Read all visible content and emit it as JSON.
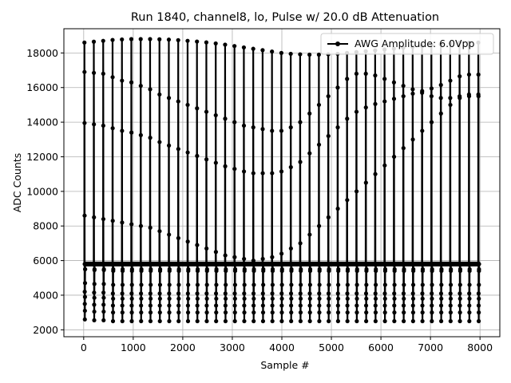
{
  "chart_data": {
    "type": "line",
    "title": "Run 1840, channel8, lo, Pulse w/ 20.0 dB Attenuation",
    "xlabel": "Sample #",
    "ylabel": "ADC Counts",
    "xlim": [
      -400,
      8400
    ],
    "ylim": [
      1600,
      19400
    ],
    "xticks": [
      0,
      1000,
      2000,
      3000,
      4000,
      5000,
      6000,
      7000,
      8000
    ],
    "yticks": [
      2000,
      4000,
      6000,
      8000,
      10000,
      12000,
      14000,
      16000,
      18000
    ],
    "xtick_labels": [
      "0",
      "1000",
      "2000",
      "3000",
      "4000",
      "5000",
      "6000",
      "7000",
      "8000"
    ],
    "ytick_labels": [
      "2000",
      "4000",
      "6000",
      "8000",
      "10000",
      "12000",
      "14000",
      "16000",
      "18000"
    ],
    "grid": true,
    "legend_position": "top-right",
    "colors": {
      "series": "#000000",
      "grid": "#b0b0b0",
      "frame": "#000000"
    },
    "series": [
      {
        "name": "AWG Amplitude: 6.0Vpp",
        "marker": "circle",
        "baseline": 5800,
        "pulse_period_samples": 189.3,
        "first_pulse_sample": 15,
        "pulse_count": 43,
        "peak_values": [
          18600,
          18650,
          18700,
          18750,
          18780,
          18800,
          18800,
          18800,
          18790,
          18770,
          18740,
          18700,
          18660,
          18610,
          18550,
          18480,
          18400,
          18320,
          18240,
          18160,
          18080,
          18000,
          17950,
          17920,
          17900,
          17900,
          17920,
          17950,
          18000,
          18050,
          18100,
          18150,
          18200,
          18250,
          18300,
          18350,
          18400,
          18450,
          18500,
          18550,
          18600,
          18600,
          18600
        ],
        "mid_upper_values": [
          16900,
          16850,
          16800,
          16600,
          16400,
          16300,
          16100,
          15900,
          15600,
          15400,
          15200,
          15000,
          14800,
          14600,
          14400,
          14200,
          14000,
          13800,
          13700,
          13600,
          13500,
          13500,
          13700,
          14000,
          14500,
          15000,
          15500,
          16000,
          16500,
          16800,
          16800,
          16700,
          16500,
          16300,
          16100,
          15900,
          15700,
          15500,
          15400,
          15400,
          15500,
          15600,
          15600
        ],
        "mid_lower_values": [
          8600,
          8500,
          8400,
          8300,
          8200,
          8100,
          8000,
          7900,
          7700,
          7500,
          7300,
          7100,
          6900,
          6700,
          6500,
          6300,
          6200,
          6100,
          6000,
          6100,
          6200,
          6400,
          6700,
          7000,
          7500,
          8000,
          8500,
          9000,
          9500,
          10000,
          10500,
          11000,
          11500,
          12000,
          12500,
          13000,
          13500,
          14000,
          14500,
          15000,
          15400,
          15500,
          15500
        ],
        "trough_values": [
          2600,
          2550,
          2550,
          2500,
          2500,
          2500,
          2500,
          2500,
          2500,
          2500,
          2500,
          2500,
          2500,
          2500,
          2500,
          2500,
          2500,
          2500,
          2500,
          2500,
          2500,
          2500,
          2500,
          2500,
          2500,
          2500,
          2500,
          2500,
          2500,
          2500,
          2500,
          2500,
          2500,
          2500,
          2500,
          2500,
          2500,
          2500,
          2500,
          2500,
          2500,
          2500,
          2500
        ]
      }
    ]
  }
}
